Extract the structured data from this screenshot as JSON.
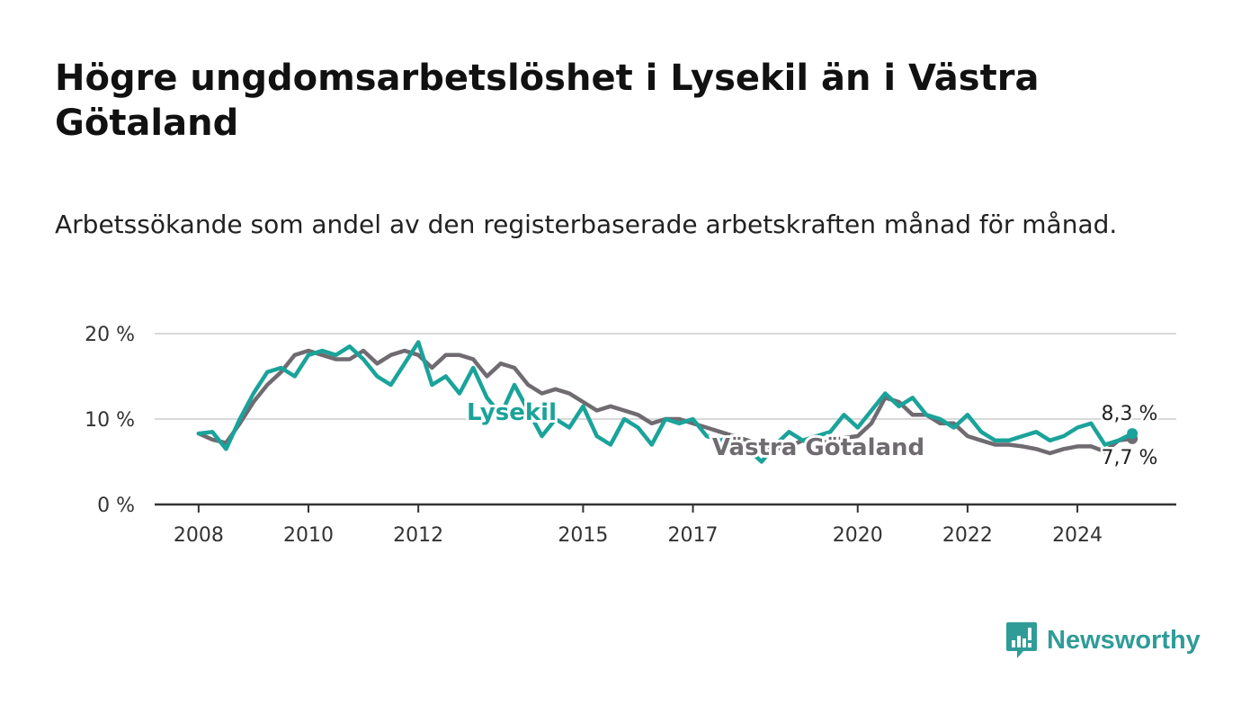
{
  "title": "Högre ungdomsarbetslöshet i Lysekil än i Västra Götaland",
  "subtitle": "Arbetssökande som andel av den registerbaserade arbetskraften månad för månad.",
  "brand": {
    "name": "Newsworthy",
    "color": "#2f9c98",
    "icon": "bar-chart-speech-icon"
  },
  "colors": {
    "lysekil": "#1aa39a",
    "vastra_gotaland": "#6f6b70",
    "grid": "#d9d9d9",
    "axis": "#333333"
  },
  "chart_data": {
    "type": "line",
    "y_ticks": [
      "0 %",
      "10 %",
      "20 %"
    ],
    "y_tick_values": [
      0,
      10,
      20
    ],
    "ylim": [
      0,
      20
    ],
    "x_ticks": [
      "2008",
      "2010",
      "2012",
      "2015",
      "2017",
      "2020",
      "2022",
      "2024"
    ],
    "x_tick_values": [
      2008.0,
      2010.0,
      2012.0,
      2015.0,
      2017.0,
      2020.0,
      2022.0,
      2024.0
    ],
    "xlim": [
      2007.2,
      2025.8
    ],
    "grid": true,
    "series": [
      {
        "name": "Västra Götaland",
        "label": "Västra Götaland",
        "end_label": "7,7 %",
        "x": [
          2008.0,
          2008.25,
          2008.5,
          2008.75,
          2009.0,
          2009.25,
          2009.5,
          2009.75,
          2010.0,
          2010.25,
          2010.5,
          2010.75,
          2011.0,
          2011.25,
          2011.5,
          2011.75,
          2012.0,
          2012.25,
          2012.5,
          2012.75,
          2013.0,
          2013.25,
          2013.5,
          2013.75,
          2014.0,
          2014.25,
          2014.5,
          2014.75,
          2015.0,
          2015.25,
          2015.5,
          2015.75,
          2016.0,
          2016.25,
          2016.5,
          2016.75,
          2017.0,
          2017.25,
          2017.5,
          2017.75,
          2018.0,
          2018.25,
          2018.5,
          2018.75,
          2019.0,
          2019.25,
          2019.5,
          2019.75,
          2020.0,
          2020.25,
          2020.5,
          2020.75,
          2021.0,
          2021.25,
          2021.5,
          2021.75,
          2022.0,
          2022.25,
          2022.5,
          2022.75,
          2023.0,
          2023.25,
          2023.5,
          2023.75,
          2024.0,
          2024.25,
          2024.5,
          2024.75,
          2025.0
        ],
        "values": [
          8.3,
          7.6,
          7.2,
          9.5,
          12.0,
          14.0,
          15.5,
          17.5,
          18.0,
          17.5,
          17.0,
          17.0,
          18.0,
          16.5,
          17.5,
          18.0,
          17.5,
          16.0,
          17.5,
          17.5,
          17.0,
          15.0,
          16.5,
          16.0,
          14.0,
          13.0,
          13.5,
          13.0,
          12.0,
          11.0,
          11.5,
          11.0,
          10.5,
          9.5,
          10.0,
          10.0,
          9.5,
          9.0,
          8.5,
          8.0,
          7.5,
          7.0,
          6.5,
          6.8,
          7.5,
          7.0,
          7.5,
          7.8,
          8.0,
          9.5,
          12.5,
          12.0,
          10.5,
          10.5,
          9.5,
          9.5,
          8.0,
          7.5,
          7.0,
          7.0,
          6.8,
          6.5,
          6.0,
          6.5,
          6.8,
          6.8,
          6.2,
          7.5,
          7.7
        ]
      },
      {
        "name": "Lysekil",
        "label": "Lysekil",
        "end_label": "8,3 %",
        "x": [
          2008.0,
          2008.25,
          2008.5,
          2008.75,
          2009.0,
          2009.25,
          2009.5,
          2009.75,
          2010.0,
          2010.25,
          2010.5,
          2010.75,
          2011.0,
          2011.25,
          2011.5,
          2011.75,
          2012.0,
          2012.25,
          2012.5,
          2012.75,
          2013.0,
          2013.25,
          2013.5,
          2013.75,
          2014.0,
          2014.25,
          2014.5,
          2014.75,
          2015.0,
          2015.25,
          2015.5,
          2015.75,
          2016.0,
          2016.25,
          2016.5,
          2016.75,
          2017.0,
          2017.25,
          2017.5,
          2017.75,
          2018.0,
          2018.25,
          2018.5,
          2018.75,
          2019.0,
          2019.25,
          2019.5,
          2019.75,
          2020.0,
          2020.25,
          2020.5,
          2020.75,
          2021.0,
          2021.25,
          2021.5,
          2021.75,
          2022.0,
          2022.25,
          2022.5,
          2022.75,
          2023.0,
          2023.25,
          2023.5,
          2023.75,
          2024.0,
          2024.25,
          2024.5,
          2024.75,
          2025.0
        ],
        "values": [
          8.3,
          8.5,
          6.5,
          10.0,
          13.0,
          15.5,
          16.0,
          15.0,
          17.5,
          18.0,
          17.5,
          18.5,
          17.0,
          15.0,
          14.0,
          16.5,
          19.0,
          14.0,
          15.0,
          13.0,
          16.0,
          12.5,
          10.5,
          14.0,
          11.0,
          8.0,
          10.0,
          9.0,
          11.5,
          8.0,
          7.0,
          10.0,
          9.0,
          7.0,
          10.0,
          9.5,
          10.0,
          8.0,
          7.5,
          8.0,
          6.5,
          5.0,
          7.0,
          8.5,
          7.5,
          8.0,
          8.5,
          10.5,
          9.0,
          11.0,
          13.0,
          11.5,
          12.5,
          10.5,
          10.0,
          9.0,
          10.5,
          8.5,
          7.5,
          7.5,
          8.0,
          8.5,
          7.5,
          8.0,
          9.0,
          9.5,
          7.0,
          7.5,
          8.3
        ]
      }
    ]
  }
}
